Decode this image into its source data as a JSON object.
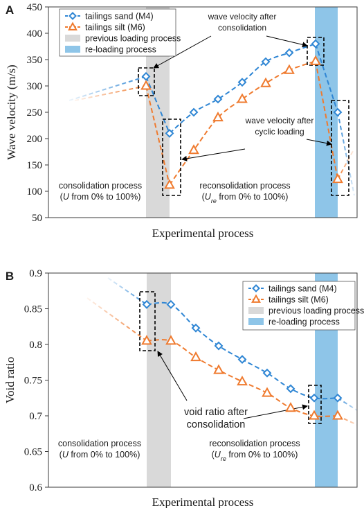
{
  "colors": {
    "sand": "#2f86d4",
    "silt": "#ef7a2e",
    "prev_band": "#d9d9d9",
    "reload_band": "#8ec5e8",
    "axis": "#3a3a3a"
  },
  "chart_data": [
    {
      "panel_label": "A",
      "type": "line",
      "xlabel": "Experimental process",
      "ylabel": "Wave velocity (m/s)",
      "ylim": [
        50,
        450
      ],
      "yticks": [
        "50",
        "100",
        "150",
        "200",
        "250",
        "300",
        "350",
        "400",
        "450"
      ],
      "grid": false,
      "legend_position": "top-left",
      "legend": {
        "sand": "tailings sand (M4)",
        "silt": "tailings silt (M6)",
        "prev": "previous loading process",
        "reload": "re-loading process"
      },
      "series": [
        {
          "name": "tailings sand (M4)",
          "x": [
            1,
            2,
            3,
            4,
            5,
            6,
            7,
            8,
            9
          ],
          "values": [
            318,
            210,
            250,
            275,
            307,
            346,
            363,
            380,
            250
          ]
        },
        {
          "name": "tailings silt (M6)",
          "x": [
            1,
            2,
            3,
            4,
            5,
            6,
            7,
            8,
            9
          ],
          "values": [
            300,
            112,
            178,
            240,
            275,
            305,
            330,
            347,
            123
          ]
        }
      ],
      "annotations": {
        "after_consolidation": "wave velocity after\nconsolidation",
        "after_cyclic": "wave velocity after\ncyclic loading",
        "consolidation_process": "consolidation process",
        "consolidation_range": "(U from 0% to 100%)",
        "reconsolidation_process": "reconsolidation process",
        "reconsolidation_range": "(Ure from 0% to 100%)"
      }
    },
    {
      "panel_label": "B",
      "type": "line",
      "xlabel": "Experimental process",
      "ylabel": "Void ratio",
      "ylim": [
        0.6,
        0.9
      ],
      "yticks": [
        "0.6",
        "0.65",
        "0.7",
        "0.75",
        "0.8",
        "0.85",
        "0.9"
      ],
      "grid": false,
      "legend_position": "top-right",
      "legend": {
        "sand": "tailings sand (M4)",
        "silt": "tailings silt (M6)",
        "prev": "previous loading process",
        "reload": "re-loading process"
      },
      "series": [
        {
          "name": "tailings sand (M4)",
          "x": [
            1,
            2,
            3,
            4,
            5,
            6,
            7,
            8,
            9
          ],
          "values": [
            0.856,
            0.856,
            0.823,
            0.798,
            0.779,
            0.76,
            0.738,
            0.725,
            0.725
          ]
        },
        {
          "name": "tailings silt (M6)",
          "x": [
            1,
            2,
            3,
            4,
            5,
            6,
            7,
            8,
            9
          ],
          "values": [
            0.805,
            0.805,
            0.782,
            0.764,
            0.748,
            0.732,
            0.711,
            0.7,
            0.7
          ]
        }
      ],
      "annotations": {
        "void_after": "void ratio after\nconsolidation",
        "consolidation_process": "consolidation process",
        "consolidation_range": "(U from 0% to 100%)",
        "reconsolidation_process": "reconsolidation process",
        "reconsolidation_range": "(Ure from 0% to 100%)"
      }
    }
  ]
}
